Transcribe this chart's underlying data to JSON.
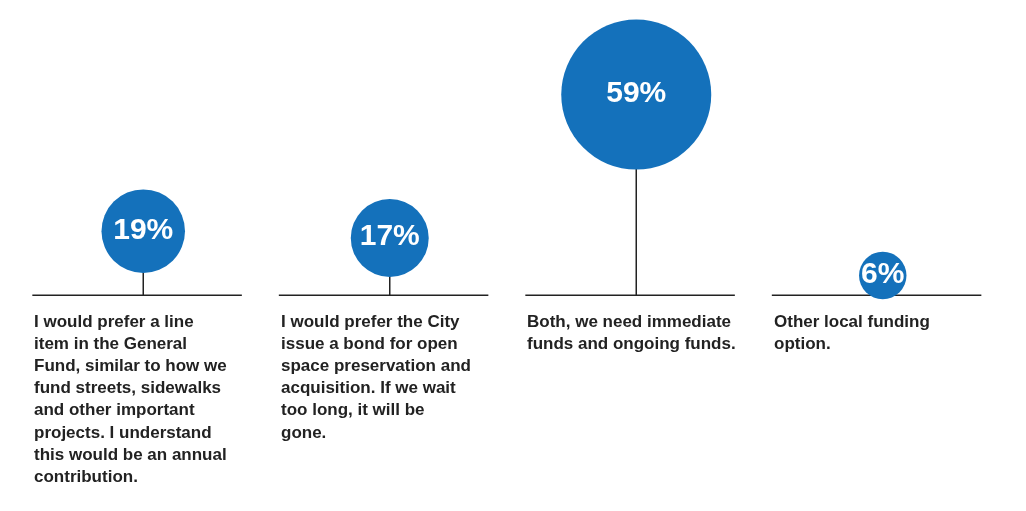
{
  "chart_data": {
    "type": "lollipop",
    "categories": [
      "I would prefer a line item in the General Fund, similar to how we fund streets, sidewalks and other important projects. I understand this would be an annual contribution.",
      "I would prefer the City issue a bond for open space preservation and acquisition. If we wait too long, it will be gone.",
      "Both, we need immediate funds and ongoing funds.",
      "Other local funding option."
    ],
    "values": [
      19,
      17,
      59,
      6
    ],
    "value_labels": [
      "19%",
      "17%",
      "59%",
      "6%"
    ],
    "color": "#1471bb",
    "sizes": [
      0.31,
      0.27,
      1,
      0.1
    ]
  }
}
